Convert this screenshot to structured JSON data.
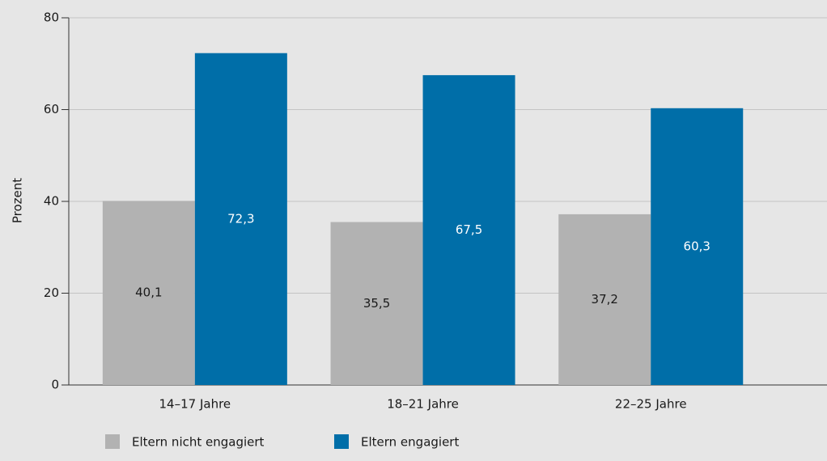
{
  "chart_data": {
    "type": "bar",
    "y_label": "Prozent",
    "categories": [
      "14–17 Jahre",
      "18–21 Jahre",
      "22–25 Jahre"
    ],
    "series": [
      {
        "name": "Eltern nicht engagiert",
        "color": "#b2b2b2",
        "values": [
          40.1,
          35.5,
          37.2
        ],
        "value_labels": [
          "40,1",
          "35,5",
          "37,2"
        ]
      },
      {
        "name": "Eltern engagiert",
        "color": "#006ea8",
        "values": [
          72.3,
          67.5,
          60.3
        ],
        "value_labels": [
          "72,3",
          "67,5",
          "60,3"
        ]
      }
    ],
    "ylim": [
      0,
      80
    ],
    "yticks": [
      0,
      20,
      40,
      60,
      80
    ],
    "grid": true
  }
}
